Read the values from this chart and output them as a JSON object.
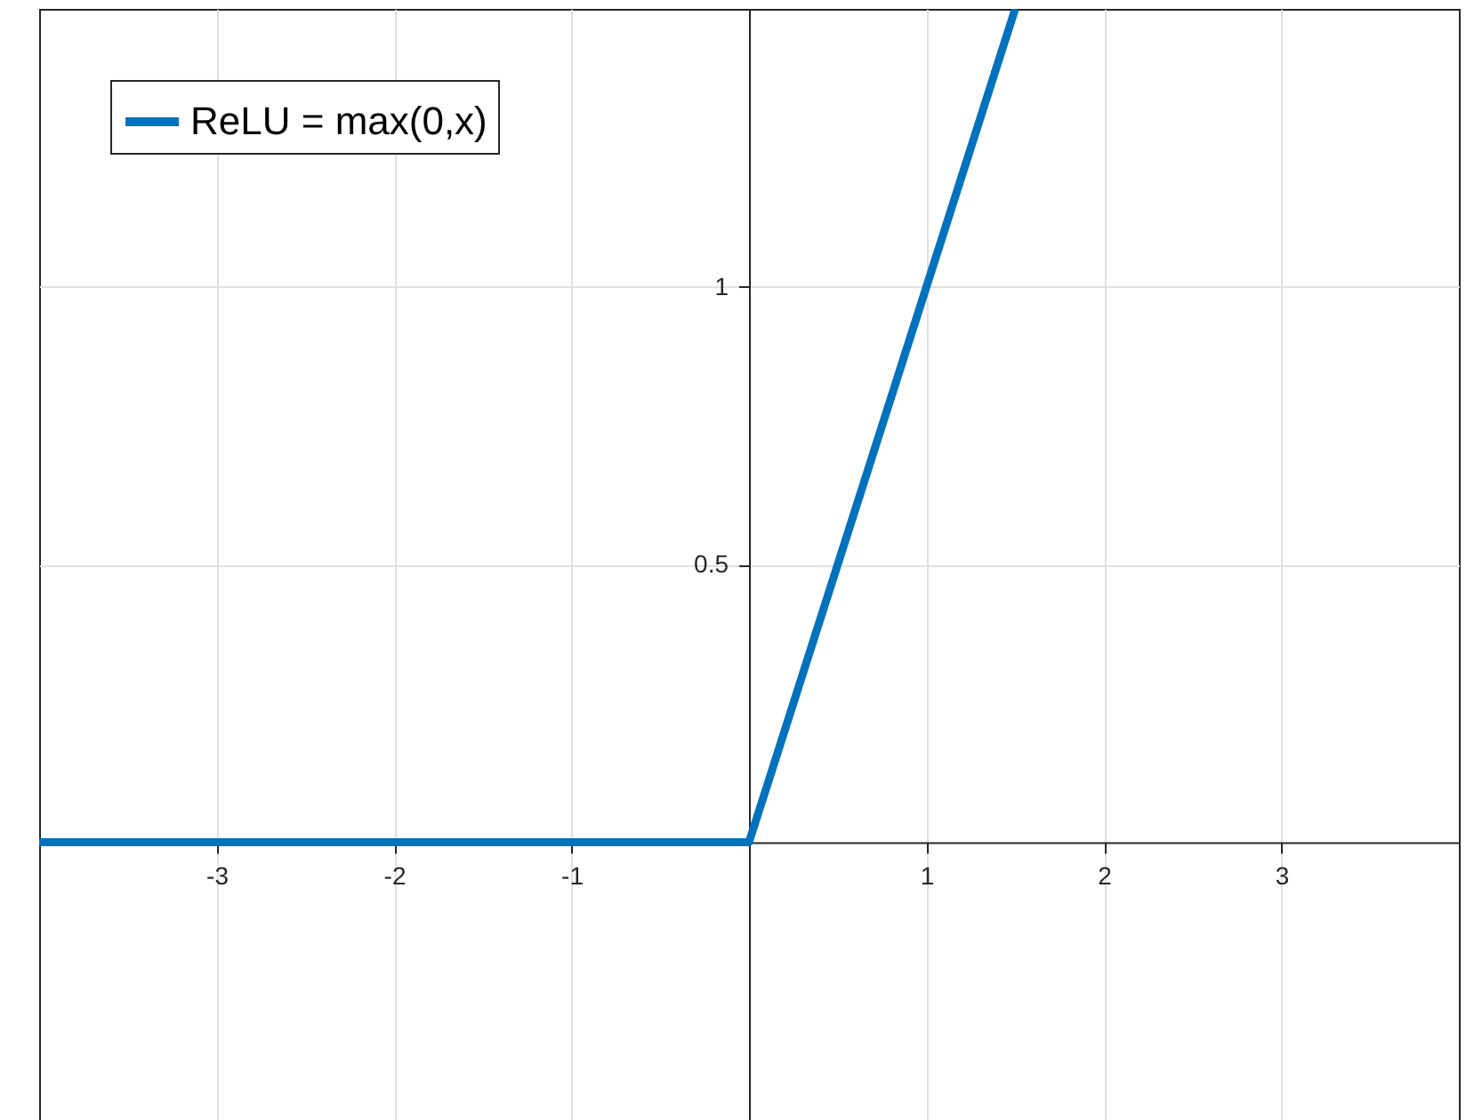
{
  "chart_data": {
    "type": "line",
    "x": [
      -4,
      0,
      1.5
    ],
    "series": [
      {
        "name": "ReLU = max(0,x)",
        "color": "#0072bd",
        "values": [
          0,
          0,
          1.5
        ]
      }
    ],
    "xlim": [
      -4,
      4
    ],
    "ylim": [
      -0.5,
      1.5
    ],
    "xticks": [
      -3,
      -2,
      -1,
      1,
      2,
      3
    ],
    "yticks": [
      0.5,
      1
    ],
    "grid": true,
    "legend": "top left",
    "line_style": "solid"
  }
}
